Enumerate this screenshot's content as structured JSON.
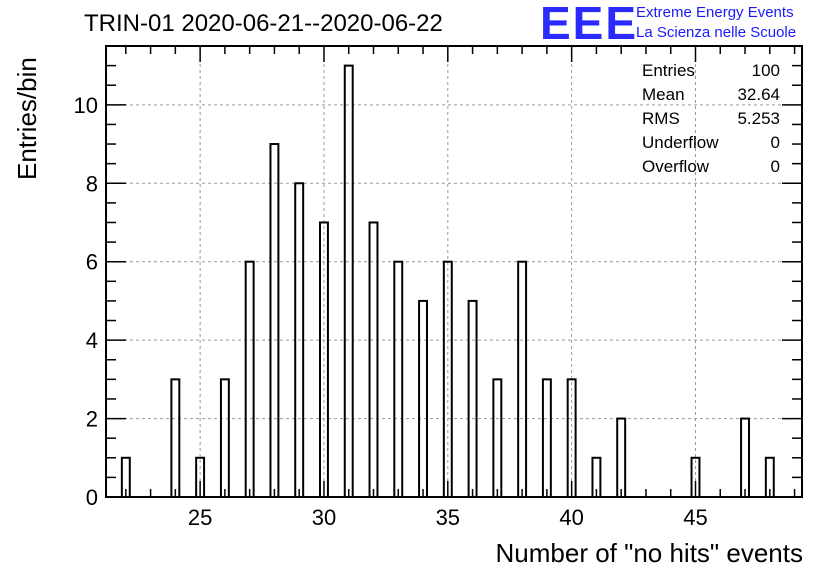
{
  "chart_data": {
    "type": "bar",
    "title": "TRIN-01 2020-06-21--2020-06-22",
    "xlabel": "Number of \"no hits\" events",
    "ylabel": "Entries/bin",
    "xlim": [
      21.2,
      49.3
    ],
    "ylim": [
      0,
      11.5
    ],
    "xticks": [
      25,
      30,
      35,
      40,
      45
    ],
    "yticks": [
      0,
      2,
      4,
      6,
      8,
      10
    ],
    "grid": true,
    "x": [
      22,
      24,
      25,
      26,
      27,
      28,
      29,
      30,
      31,
      32,
      33,
      34,
      35,
      36,
      37,
      38,
      39,
      40,
      41,
      42,
      45,
      47,
      48
    ],
    "values": [
      1,
      3,
      1,
      3,
      6,
      9,
      8,
      7,
      11,
      7,
      6,
      5,
      6,
      5,
      3,
      6,
      3,
      3,
      1,
      2,
      1,
      2,
      1
    ],
    "stats": [
      {
        "label": "Entries",
        "value": "100"
      },
      {
        "label": "Mean",
        "value": "32.64"
      },
      {
        "label": "RMS",
        "value": "5.253"
      },
      {
        "label": "Underflow",
        "value": "0"
      },
      {
        "label": "Overflow",
        "value": "0"
      }
    ],
    "stats_placement": "top-right"
  },
  "logo": {
    "letters": "EEE",
    "line1": "Extreme Energy Events",
    "line2": "La Scienza nelle Scuole",
    "color": "#2a2aff"
  }
}
